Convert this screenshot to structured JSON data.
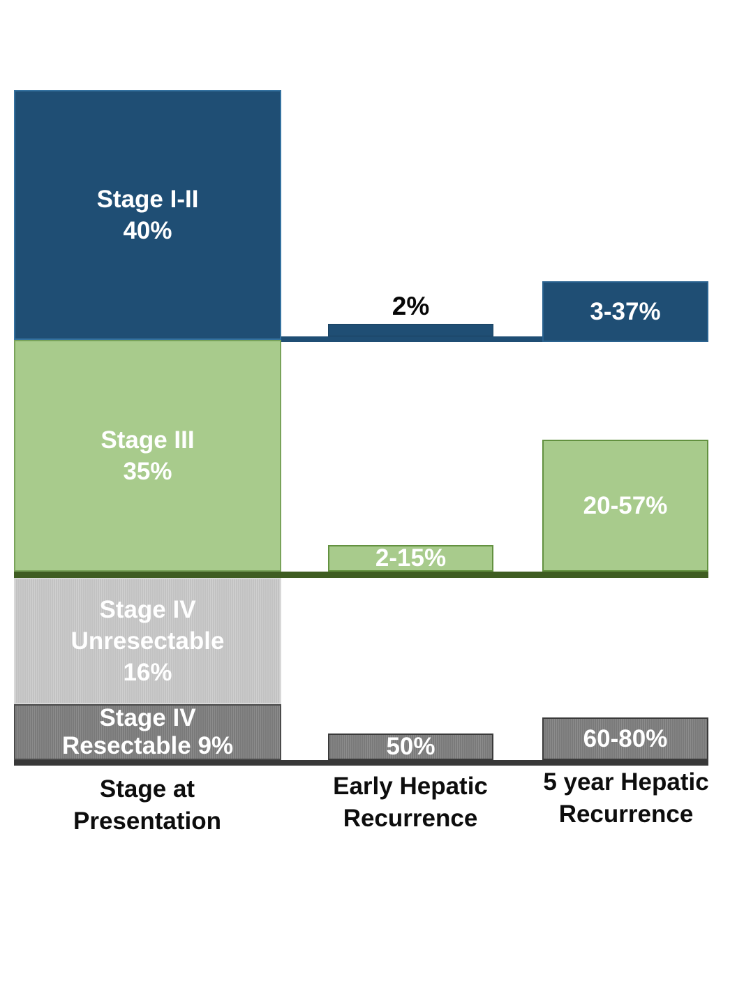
{
  "colors": {
    "blue": "#1F4E74",
    "green": "#A8CB8C",
    "light_gray": "#CACACA",
    "dark_gray": "#7F7F7F",
    "green_baseline": "#3F5D22",
    "dark_baseline": "#383838",
    "label_black": "#0d0d0d",
    "label_white": "#ffffff"
  },
  "left_bar": {
    "segments": [
      {
        "line1": "Stage I-II",
        "line2": "40%"
      },
      {
        "line1": "Stage III",
        "line2": "35%"
      },
      {
        "line1": "Stage IV",
        "line2": "Unresectable",
        "line3": "16%"
      },
      {
        "line1": "Stage IV",
        "line2": "Resectable 9%"
      }
    ]
  },
  "early_recurrence": {
    "stage12": "2%",
    "stage3": "2-15%",
    "stage4": "50%"
  },
  "five_year_recurrence": {
    "stage12": "3-37%",
    "stage3": "20-57%",
    "stage4": "60-80%"
  },
  "x_labels": [
    {
      "line1": "Stage at",
      "line2": "Presentation"
    },
    {
      "line1": "Early Hepatic",
      "line2": "Recurrence"
    },
    {
      "line1": "5 year Hepatic",
      "line2": "Recurrence"
    }
  ],
  "chart_data": {
    "type": "bar",
    "subtype": "left column stacked (stage distribution); middle and right columns show per-stage recurrence-rate bars resting on stage baselines",
    "categories": [
      "Stage at Presentation",
      "Early Hepatic Recurrence",
      "5 year Hepatic Recurrence"
    ],
    "series": [
      {
        "name": "Stage I-II",
        "color": "#1F4E74",
        "values": [
          "40%",
          "2%",
          "3-37%"
        ]
      },
      {
        "name": "Stage III",
        "color": "#A8CB8C",
        "values": [
          "35%",
          "2-15%",
          "20-57%"
        ]
      },
      {
        "name": "Stage IV Unresectable",
        "color": "#CACACA",
        "values": [
          "16%",
          null,
          null
        ]
      },
      {
        "name": "Stage IV Resectable",
        "color": "#7F7F7F",
        "values": [
          "9%",
          "50%",
          "60-80%"
        ]
      }
    ],
    "value_axis": "percent",
    "grid": false,
    "legend": "none (labels printed inside/above bars)"
  }
}
